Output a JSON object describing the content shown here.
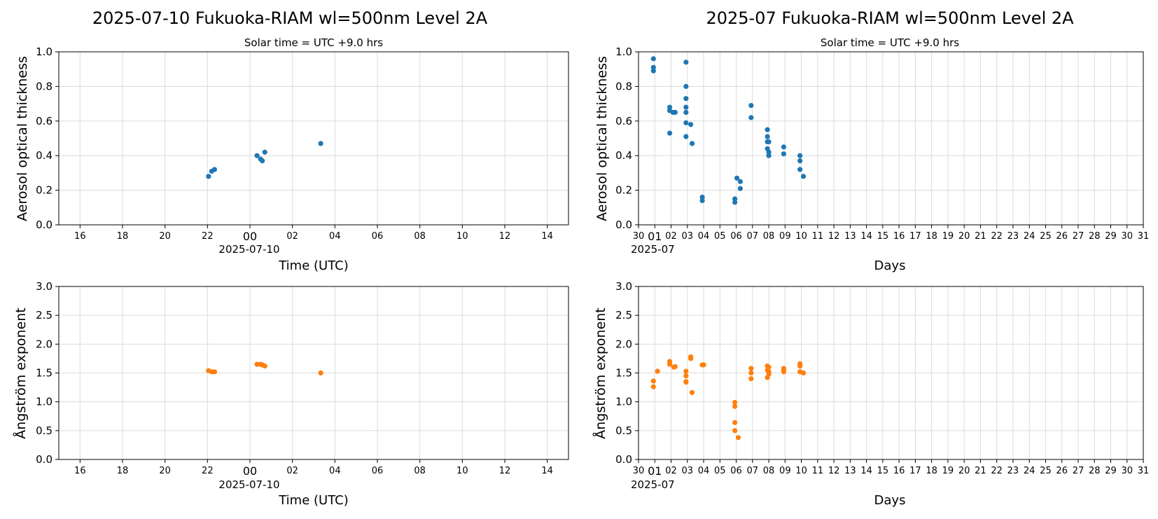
{
  "chart_data": [
    {
      "id": "daily-aod",
      "type": "scatter",
      "title": "2025-07-10  Fukuoka-RIAM  wl=500nm  Level 2A",
      "subtitle": "Solar time = UTC +9.0 hrs",
      "xlabel": "Time (UTC)",
      "ylabel": "Aerosol optical thickness",
      "xaxis_date_label": "2025-07-10",
      "xlim": [
        "2025-07-09 15:00",
        "2025-07-10 15:00"
      ],
      "xticks": [
        "16",
        "18",
        "20",
        "22",
        "00",
        "02",
        "04",
        "06",
        "08",
        "10",
        "12",
        "14"
      ],
      "ylim": [
        0,
        1.0
      ],
      "yticks": [
        "0.0",
        "0.2",
        "0.4",
        "0.6",
        "0.8",
        "1.0"
      ],
      "grid": true,
      "color": "#1f77b4",
      "x": [
        "2025-07-09 22:03",
        "2025-07-09 22:12",
        "2025-07-09 22:20",
        "2025-07-10 00:20",
        "2025-07-10 00:30",
        "2025-07-10 00:35",
        "2025-07-10 00:42",
        "2025-07-10 03:20"
      ],
      "y": [
        0.28,
        0.31,
        0.32,
        0.4,
        0.38,
        0.37,
        0.42,
        0.47
      ]
    },
    {
      "id": "monthly-aod",
      "type": "scatter",
      "title": "2025-07  Fukuoka-RIAM  wl=500nm  Level 2A",
      "subtitle": "Solar time = UTC +9.0 hrs",
      "xlabel": "Days",
      "ylabel": "Aerosol optical thickness",
      "xaxis_date_label": "2025-07",
      "xlim": [
        "2025-06-30",
        "2025-07-31"
      ],
      "xticks": [
        "30",
        "01",
        "02",
        "03",
        "04",
        "05",
        "06",
        "07",
        "08",
        "09",
        "10",
        "11",
        "12",
        "13",
        "14",
        "15",
        "16",
        "17",
        "18",
        "19",
        "20",
        "21",
        "22",
        "23",
        "24",
        "25",
        "26",
        "27",
        "28",
        "29",
        "30",
        "31"
      ],
      "ylim": [
        0,
        1.0
      ],
      "yticks": [
        "0.0",
        "0.2",
        "0.4",
        "0.6",
        "0.8",
        "1.0"
      ],
      "grid": true,
      "color": "#1f77b4",
      "x": [
        "2025-06-30 22:00",
        "2025-06-30 22:00",
        "2025-06-30 22:00",
        "2025-07-01 22:00",
        "2025-07-01 22:00",
        "2025-07-01 22:00",
        "2025-07-02 03:00",
        "2025-07-02 06:00",
        "2025-07-02 22:00",
        "2025-07-02 22:00",
        "2025-07-02 22:00",
        "2025-07-02 22:00",
        "2025-07-02 22:00",
        "2025-07-02 22:00",
        "2025-07-02 22:00",
        "2025-07-03 05:00",
        "2025-07-03 07:00",
        "2025-07-03 22:00",
        "2025-07-03 22:00",
        "2025-07-05 22:00",
        "2025-07-05 22:00",
        "2025-07-06 01:00",
        "2025-07-06 06:00",
        "2025-07-06 06:00",
        "2025-07-06 22:00",
        "2025-07-06 22:00",
        "2025-07-07 22:00",
        "2025-07-07 22:00",
        "2025-07-07 22:00",
        "2025-07-07 22:00",
        "2025-07-08 00:00",
        "2025-07-08 00:00",
        "2025-07-08 00:00",
        "2025-07-08 22:00",
        "2025-07-08 22:00",
        "2025-07-09 22:00",
        "2025-07-09 22:00",
        "2025-07-09 22:00",
        "2025-07-10 03:00"
      ],
      "y": [
        0.96,
        0.91,
        0.89,
        0.68,
        0.66,
        0.53,
        0.65,
        0.65,
        0.8,
        0.73,
        0.68,
        0.65,
        0.59,
        0.51,
        0.94,
        0.58,
        0.47,
        0.16,
        0.14,
        0.13,
        0.15,
        0.27,
        0.25,
        0.21,
        0.69,
        0.62,
        0.55,
        0.51,
        0.48,
        0.44,
        0.42,
        0.4,
        0.48,
        0.45,
        0.41,
        0.4,
        0.37,
        0.32,
        0.28
      ]
    },
    {
      "id": "daily-angstrom",
      "type": "scatter",
      "xlabel": "Time (UTC)",
      "ylabel": "Ångström exponent",
      "xaxis_date_label": "2025-07-10",
      "xlim": [
        "2025-07-09 15:00",
        "2025-07-10 15:00"
      ],
      "xticks": [
        "16",
        "18",
        "20",
        "22",
        "00",
        "02",
        "04",
        "06",
        "08",
        "10",
        "12",
        "14"
      ],
      "ylim": [
        0,
        3.0
      ],
      "yticks": [
        "0.0",
        "0.5",
        "1.0",
        "1.5",
        "2.0",
        "2.5",
        "3.0"
      ],
      "grid": true,
      "color": "#ff7f0e",
      "x": [
        "2025-07-09 22:03",
        "2025-07-09 22:12",
        "2025-07-09 22:20",
        "2025-07-10 00:20",
        "2025-07-10 00:30",
        "2025-07-10 00:35",
        "2025-07-10 00:42",
        "2025-07-10 03:20"
      ],
      "y": [
        1.54,
        1.52,
        1.52,
        1.65,
        1.65,
        1.64,
        1.62,
        1.5
      ]
    },
    {
      "id": "monthly-angstrom",
      "type": "scatter",
      "xlabel": "Days",
      "ylabel": "Ångström exponent",
      "xaxis_date_label": "2025-07",
      "xlim": [
        "2025-06-30",
        "2025-07-31"
      ],
      "xticks": [
        "30",
        "01",
        "02",
        "03",
        "04",
        "05",
        "06",
        "07",
        "08",
        "09",
        "10",
        "11",
        "12",
        "13",
        "14",
        "15",
        "16",
        "17",
        "18",
        "19",
        "20",
        "21",
        "22",
        "23",
        "24",
        "25",
        "26",
        "27",
        "28",
        "29",
        "30",
        "31"
      ],
      "ylim": [
        0,
        3.0
      ],
      "yticks": [
        "0.0",
        "0.5",
        "1.0",
        "1.5",
        "2.0",
        "2.5",
        "3.0"
      ],
      "grid": true,
      "color": "#ff7f0e",
      "x": [
        "2025-06-30 22:00",
        "2025-06-30 22:00",
        "2025-07-01 04:00",
        "2025-07-01 22:00",
        "2025-07-01 22:00",
        "2025-07-02 04:00",
        "2025-07-02 06:00",
        "2025-07-02 22:00",
        "2025-07-02 22:00",
        "2025-07-02 22:00",
        "2025-07-02 22:00",
        "2025-07-03 05:00",
        "2025-07-03 05:00",
        "2025-07-03 07:00",
        "2025-07-03 22:00",
        "2025-07-04 00:00",
        "2025-07-05 22:00",
        "2025-07-05 22:00",
        "2025-07-05 22:00",
        "2025-07-05 22:00",
        "2025-07-06 03:00",
        "2025-07-06 22:00",
        "2025-07-06 22:00",
        "2025-07-06 22:00",
        "2025-07-07 22:00",
        "2025-07-07 22:00",
        "2025-07-07 22:00",
        "2025-07-08 00:00",
        "2025-07-08 00:00",
        "2025-07-08 00:00",
        "2025-07-08 22:00",
        "2025-07-08 22:00",
        "2025-07-08 22:00",
        "2025-07-09 22:00",
        "2025-07-09 22:00",
        "2025-07-09 22:00",
        "2025-07-10 03:00"
      ],
      "y": [
        1.36,
        1.26,
        1.53,
        1.7,
        1.65,
        1.6,
        1.61,
        1.53,
        1.45,
        1.35,
        1.34,
        1.78,
        1.75,
        1.16,
        1.64,
        1.64,
        0.99,
        0.92,
        0.64,
        0.5,
        0.38,
        1.58,
        1.5,
        1.4,
        1.62,
        1.55,
        1.42,
        1.6,
        1.52,
        1.48,
        1.58,
        1.55,
        1.52,
        1.66,
        1.62,
        1.52,
        1.5
      ]
    }
  ]
}
